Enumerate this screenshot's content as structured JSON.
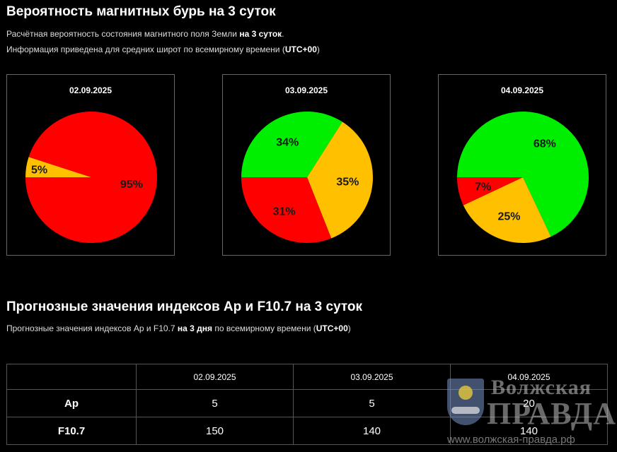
{
  "header": {
    "title": "Вероятность магнитных бурь на 3 суток",
    "line1_pre": "Расчётная вероятность состояния магнитного поля Земли ",
    "line1_bold": "на 3 суток",
    "line1_post": ".",
    "line2_pre": "Информация приведена для средних широт по всемирному времени (",
    "line2_bold": "UTC+00",
    "line2_post": ")"
  },
  "colors": {
    "green": "#00ee00",
    "orange": "#ffc000",
    "red": "#ff0000"
  },
  "chart_data": [
    {
      "type": "pie",
      "title": "02.09.2025",
      "slices": [
        {
          "label": "5%",
          "value": 5,
          "color": "#ffc000"
        },
        {
          "label": "95%",
          "value": 95,
          "color": "#ff0000"
        }
      ]
    },
    {
      "type": "pie",
      "title": "03.09.2025",
      "slices": [
        {
          "label": "34%",
          "value": 34,
          "color": "#00ee00"
        },
        {
          "label": "35%",
          "value": 35,
          "color": "#ffc000"
        },
        {
          "label": "31%",
          "value": 31,
          "color": "#ff0000"
        }
      ]
    },
    {
      "type": "pie",
      "title": "04.09.2025",
      "slices": [
        {
          "label": "68%",
          "value": 68,
          "color": "#00ee00"
        },
        {
          "label": "25%",
          "value": 25,
          "color": "#ffc000"
        },
        {
          "label": "7%",
          "value": 7,
          "color": "#ff0000"
        }
      ]
    }
  ],
  "forecast": {
    "title": "Прогнозные значения индексов Ap и F10.7 на 3 суток",
    "sub_pre": "Прогнозные значения индексов Ap и F10.7 ",
    "sub_bold": "на 3 дня",
    "sub_mid": " по всемирному времени (",
    "sub_bold2": "UTC+00",
    "sub_post": ")",
    "columns": [
      "02.09.2025",
      "03.09.2025",
      "04.09.2025"
    ],
    "rows": [
      {
        "label": "Ap",
        "values": [
          "5",
          "5",
          "20"
        ]
      },
      {
        "label": "F10.7",
        "values": [
          "150",
          "140",
          "140"
        ]
      }
    ]
  },
  "watermark": {
    "line1": "Волжская",
    "line2": "ПРАВДА",
    "url": "www.волжская-правда.рф"
  }
}
